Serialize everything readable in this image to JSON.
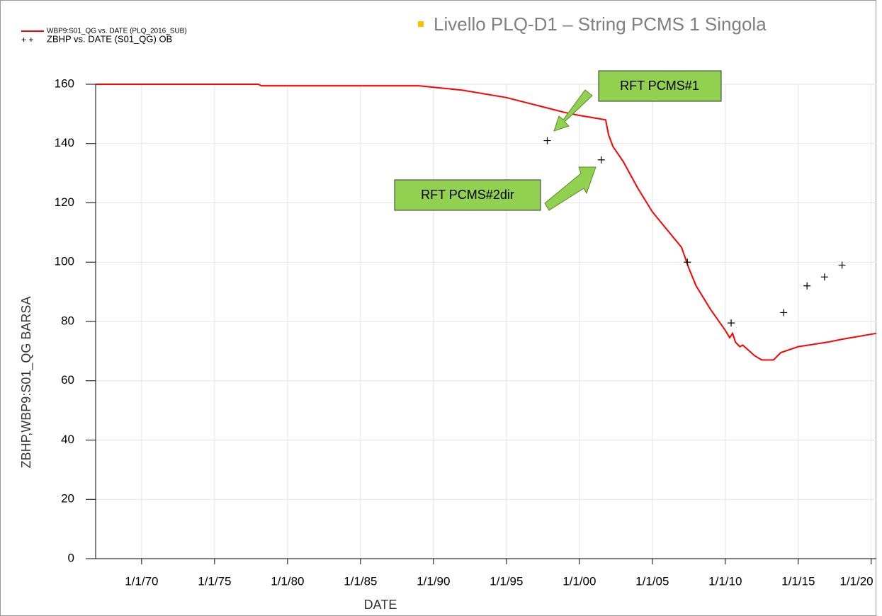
{
  "chart_data": {
    "type": "line",
    "title": "Livello PLQ-D1 – String PCMS 1 Singola",
    "x_label": "DATE",
    "y_label": "ZBHP,WBP9:S01_QG  BARSA",
    "xlim": [
      1966.85,
      2020.35
    ],
    "ylim": [
      0,
      160
    ],
    "xticks": [
      {
        "value": 1970,
        "label": "1/1/70"
      },
      {
        "value": 1975,
        "label": "1/1/75"
      },
      {
        "value": 1980,
        "label": "1/1/80"
      },
      {
        "value": 1985,
        "label": "1/1/85"
      },
      {
        "value": 1990,
        "label": "1/1/90"
      },
      {
        "value": 1995,
        "label": "1/1/95"
      },
      {
        "value": 2000,
        "label": "1/1/00"
      },
      {
        "value": 2005,
        "label": "1/1/05"
      },
      {
        "value": 2010,
        "label": "1/1/10"
      },
      {
        "value": 2015,
        "label": "1/1/15"
      },
      {
        "value": 2020,
        "label": "1/1/20"
      }
    ],
    "yticks": [
      0,
      20,
      40,
      60,
      80,
      100,
      120,
      140,
      160
    ],
    "grid": true,
    "legend": "top-left",
    "series": [
      {
        "name": "WBP9:S01_QG  vs.  DATE (PLQ_2016_SUB)",
        "color": "#ff0000",
        "marker": "line",
        "x": [
          1966.85,
          1978,
          1978.2,
          1989,
          1990,
          1992,
          1995,
          1997,
          1999,
          2000,
          2001.8,
          2002,
          2002.3,
          2003,
          2004,
          2005,
          2006,
          2007,
          2007.5,
          2008,
          2009,
          2010,
          2010.3,
          2010.5,
          2010.7,
          2011,
          2011.2,
          2012,
          2012.5,
          2013.3,
          2013.8,
          2015,
          2017,
          2018,
          2020.35
        ],
        "values": [
          160,
          160,
          159.5,
          159.5,
          159,
          158,
          155.5,
          153,
          150.5,
          149.5,
          148,
          143,
          139,
          134,
          125,
          117,
          111,
          105,
          98,
          92,
          84,
          77,
          74.5,
          76,
          73,
          71.5,
          72,
          68.5,
          67,
          67,
          69.5,
          71.5,
          73,
          74,
          76
        ]
      },
      {
        "name": "ZBHP  vs.  DATE (S01_QG) OB",
        "color": "#000000",
        "marker": "+",
        "x": [
          1997.8,
          2001.5,
          2007.4,
          2010.4,
          2014,
          2015.6,
          2016.8,
          2018
        ],
        "values": [
          141,
          134.5,
          100,
          79.5,
          83,
          92,
          95,
          99
        ]
      }
    ],
    "annotations": [
      "RFT PCMS#1",
      "RFT PCMS#2dir"
    ]
  }
}
